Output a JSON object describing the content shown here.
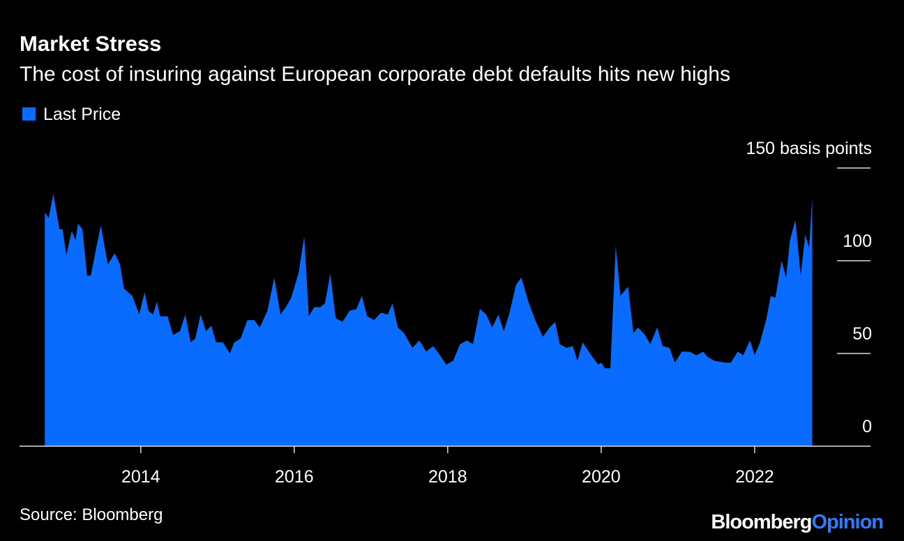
{
  "chart_data": {
    "type": "area",
    "title": "Market Stress",
    "subtitle": "The cost of insuring against European corporate debt defaults hits new highs",
    "source": "Source: Bloomberg",
    "branding": {
      "name": "Bloomberg",
      "suffix": "Opinion"
    },
    "x": [
      2012.75,
      2012.8,
      2012.86,
      2012.94,
      2012.98,
      2013.03,
      2013.1,
      2013.15,
      2013.18,
      2013.24,
      2013.3,
      2013.35,
      2013.42,
      2013.48,
      2013.57,
      2013.66,
      2013.73,
      2013.78,
      2013.89,
      2013.98,
      2014.05,
      2014.1,
      2014.16,
      2014.21,
      2014.25,
      2014.35,
      2014.42,
      2014.51,
      2014.58,
      2014.65,
      2014.71,
      2014.78,
      2014.85,
      2014.92,
      2014.98,
      2015.07,
      2015.16,
      2015.22,
      2015.3,
      2015.39,
      2015.48,
      2015.55,
      2015.65,
      2015.74,
      2015.82,
      2015.89,
      2015.96,
      2016.06,
      2016.13,
      2016.19,
      2016.26,
      2016.34,
      2016.4,
      2016.47,
      2016.54,
      2016.63,
      2016.72,
      2016.81,
      2016.88,
      2016.95,
      2017.04,
      2017.13,
      2017.22,
      2017.28,
      2017.35,
      2017.43,
      2017.54,
      2017.63,
      2017.72,
      2017.81,
      2017.9,
      2017.98,
      2018.07,
      2018.16,
      2018.25,
      2018.33,
      2018.42,
      2018.5,
      2018.58,
      2018.66,
      2018.73,
      2018.8,
      2018.89,
      2018.96,
      2019.05,
      2019.14,
      2019.24,
      2019.33,
      2019.4,
      2019.46,
      2019.55,
      2019.63,
      2019.69,
      2019.76,
      2019.87,
      2019.96,
      2020.0,
      2020.05,
      2020.12,
      2020.19,
      2020.25,
      2020.35,
      2020.42,
      2020.48,
      2020.57,
      2020.64,
      2020.73,
      2020.8,
      2020.89,
      2020.96,
      2021.05,
      2021.15,
      2021.24,
      2021.33,
      2021.39,
      2021.48,
      2021.62,
      2021.69,
      2021.78,
      2021.85,
      2021.94,
      2022.0,
      2022.07,
      2022.15,
      2022.21,
      2022.27,
      2022.35,
      2022.41,
      2022.46,
      2022.53,
      2022.6,
      2022.66,
      2022.71,
      2022.75
    ],
    "series": [
      {
        "name": "Last Price",
        "color": "#0a6cff",
        "values": [
          126,
          123,
          136,
          117,
          117,
          103,
          116,
          111,
          120,
          117,
          92,
          92,
          107,
          119,
          98,
          104,
          98,
          85,
          81,
          71,
          83,
          73,
          71,
          78,
          70,
          70,
          60,
          62,
          71,
          56,
          58,
          71,
          62,
          65,
          56,
          56,
          50,
          56,
          58,
          68,
          68,
          64,
          73,
          91,
          71,
          75,
          80,
          94,
          113,
          70,
          75,
          75,
          77,
          93,
          69,
          67,
          73,
          74,
          81,
          70,
          68,
          72,
          71,
          77,
          64,
          61,
          53,
          57,
          51,
          54,
          49,
          44,
          46,
          55,
          57,
          55,
          74,
          71,
          64,
          71,
          62,
          71,
          87,
          91,
          78,
          68,
          59,
          64,
          67,
          55,
          53,
          54,
          46,
          56,
          49,
          44,
          45,
          42,
          42,
          108,
          81,
          86,
          61,
          64,
          60,
          55,
          64,
          54,
          53,
          45,
          51,
          51,
          49,
          51,
          48,
          46,
          45,
          45,
          51,
          49,
          57,
          49,
          56,
          68,
          81,
          80,
          100,
          91,
          111,
          122,
          92,
          114,
          107,
          134
        ]
      }
    ],
    "xlim": [
      2012.42,
      2023.51
    ],
    "xticks": [
      2014,
      2016,
      2018,
      2020,
      2022
    ],
    "ylim": [
      0,
      150
    ],
    "yticks": [
      0,
      50,
      100,
      {
        "value": 150,
        "label": "150 basis points"
      }
    ],
    "legend": "top-left"
  }
}
